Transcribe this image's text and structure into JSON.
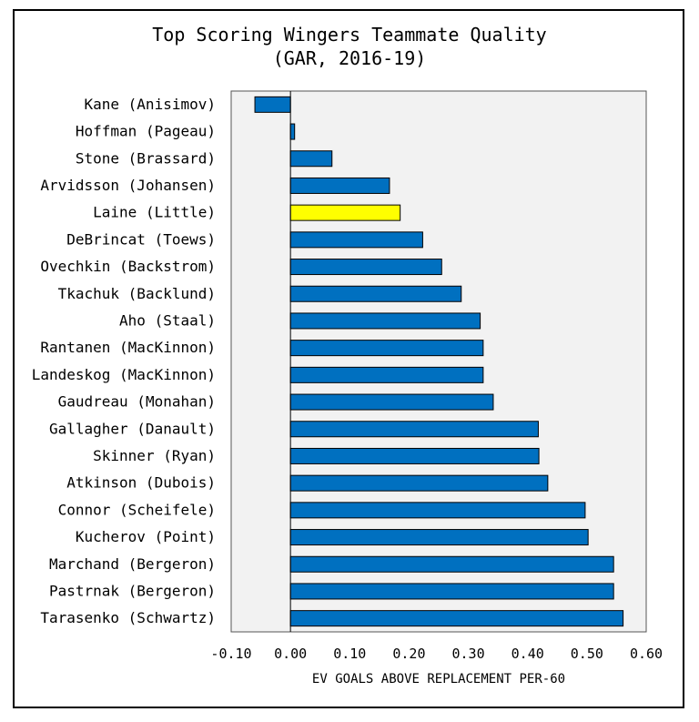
{
  "chart_data": {
    "type": "bar",
    "orientation": "horizontal",
    "title": "Top Scoring Wingers Teammate Quality",
    "subtitle": "(GAR, 2016-19)",
    "xlabel": "EV GOALS ABOVE REPLACEMENT PER-60",
    "ylabel": "",
    "xlim": [
      -0.1,
      0.6
    ],
    "xticks": [
      "-0.10",
      "0.00",
      "0.10",
      "0.20",
      "0.30",
      "0.40",
      "0.50",
      "0.60"
    ],
    "grid": false,
    "categories": [
      "Kane (Anisimov)",
      "Hoffman (Pageau)",
      "Stone (Brassard)",
      "Arvidsson (Johansen)",
      "Laine (Little)",
      "DeBrincat (Toews)",
      "Ovechkin (Backstrom)",
      "Tkachuk (Backlund)",
      "Aho (Staal)",
      "Rantanen (MacKinnon)",
      "Landeskog (MacKinnon)",
      "Gaudreau (Monahan)",
      "Gallagher (Danault)",
      "Skinner (Ryan)",
      "Atkinson (Dubois)",
      "Connor (Scheifele)",
      "Kucherov (Point)",
      "Marchand (Bergeron)",
      "Pastrnak (Bergeron)",
      "Tarasenko (Schwartz)"
    ],
    "values": [
      -0.06,
      0.007,
      0.07,
      0.167,
      0.185,
      0.223,
      0.255,
      0.288,
      0.32,
      0.325,
      0.325,
      0.342,
      0.418,
      0.419,
      0.434,
      0.497,
      0.502,
      0.545,
      0.545,
      0.561
    ],
    "highlight": "Laine (Little)",
    "colors": {
      "bar": "#0070c0",
      "highlight": "#ffff00",
      "plot_bg": "#f2f2f2",
      "border": "#000000"
    }
  }
}
